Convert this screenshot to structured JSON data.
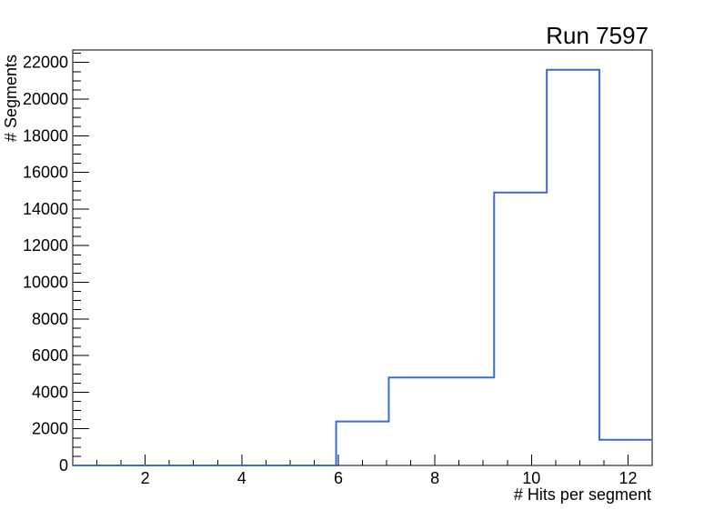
{
  "page": {
    "background": "#ffffff"
  },
  "chart_data": {
    "type": "histogram-step",
    "title": "Run 7597",
    "xlabel": "# Hits per segment",
    "ylabel": "# Segments",
    "xlim": [
      0.5,
      12.5
    ],
    "ylim": [
      0,
      22680
    ],
    "bin_edges": [
      0.5,
      1.5909,
      2.6818,
      3.7727,
      4.8636,
      5.9545,
      7.0455,
      8.1364,
      9.2273,
      10.3182,
      11.4091,
      12.5
    ],
    "counts": [
      0,
      0,
      0,
      0,
      0,
      2400,
      4800,
      4800,
      14900,
      21600,
      1400
    ],
    "x_major_ticks": [
      2,
      4,
      6,
      8,
      10,
      12
    ],
    "x_major_labels": [
      "2",
      "4",
      "6",
      "8",
      "10",
      "12"
    ],
    "x_minor_step": 0.5,
    "y_major_ticks": [
      0,
      2000,
      4000,
      6000,
      8000,
      10000,
      12000,
      14000,
      16000,
      18000,
      20000,
      22000
    ],
    "y_major_labels": [
      "0",
      "2000",
      "4000",
      "6000",
      "8000",
      "10000",
      "12000",
      "14000",
      "16000",
      "18000",
      "20000",
      "22000"
    ],
    "y_minor_step": 500,
    "grid": false,
    "legend_position": "none",
    "line_color": "#3B6CC8",
    "frame_color": "#000000",
    "text_color": "#000000"
  }
}
